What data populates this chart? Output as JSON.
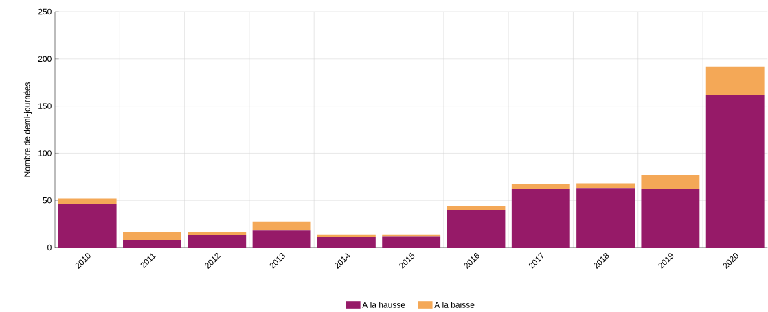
{
  "chart_data": {
    "type": "bar",
    "stacked": true,
    "ylabel": "Nombre de demi-journées",
    "categories": [
      "2010",
      "2011",
      "2012",
      "2013",
      "2014",
      "2015",
      "2016",
      "2017",
      "2018",
      "2019",
      "2020"
    ],
    "series": [
      {
        "name": "A la hausse",
        "color": "#961a68",
        "values": [
          46,
          8,
          13,
          18,
          11,
          12,
          40,
          62,
          63,
          62,
          162
        ]
      },
      {
        "name": "A la baisse",
        "color": "#f4a857",
        "values": [
          6,
          8,
          3,
          9,
          3,
          2,
          4,
          5,
          5,
          15,
          30
        ]
      }
    ],
    "ylim": [
      0,
      250
    ],
    "yticks": [
      0,
      50,
      100,
      150,
      200,
      250
    ],
    "grid": true,
    "legend": "bottom"
  }
}
